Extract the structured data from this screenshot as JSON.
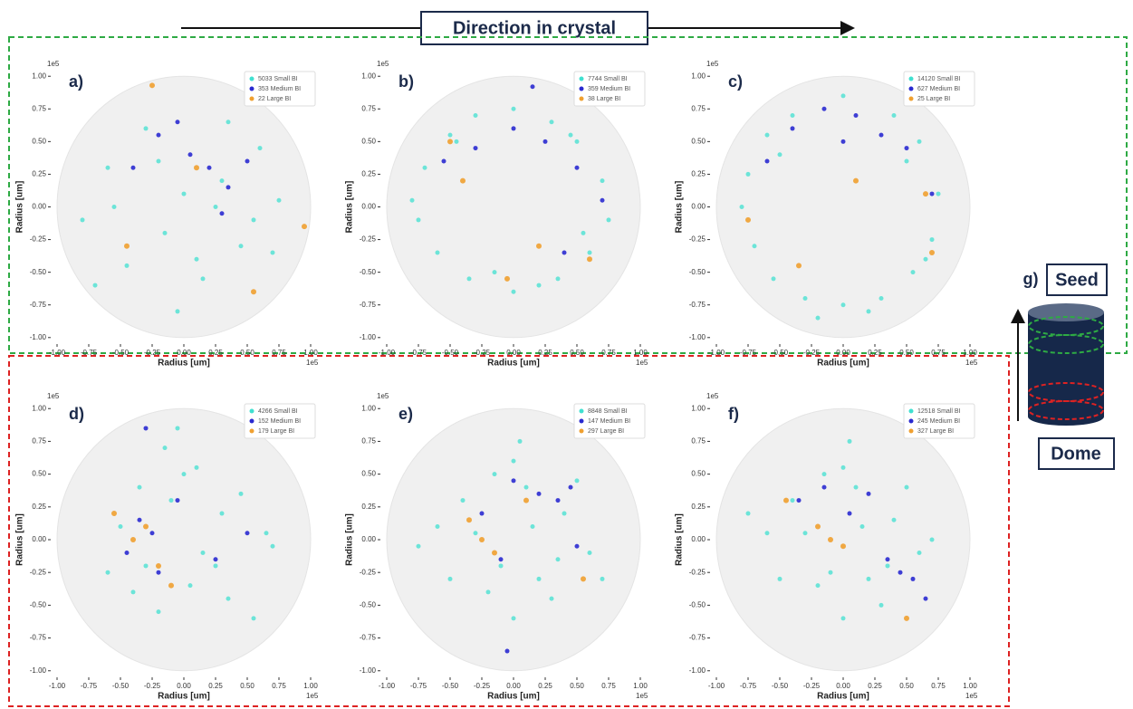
{
  "header": {
    "title": "Direction in crystal"
  },
  "diagram": {
    "label": "g)",
    "top": "Seed",
    "bottom": "Dome"
  },
  "chart_data": [
    {
      "type": "scatter",
      "label": "a)",
      "offset_text": "1e5",
      "xlabel": "Radius [um]",
      "ylabel": "Radius [um]",
      "legend": "upper right",
      "xlim": [
        -1.05,
        1.05
      ],
      "ylim": [
        -1.05,
        1.05
      ],
      "xticks": [
        {
          "value": -1,
          "label": "-1.00"
        },
        {
          "value": -0.75,
          "label": "-0.75"
        },
        {
          "value": -0.5,
          "label": "-0.50"
        },
        {
          "value": -0.25,
          "label": "-0.25"
        },
        {
          "value": 0,
          "label": "0.00"
        },
        {
          "value": 0.25,
          "label": "0.25"
        },
        {
          "value": 0.5,
          "label": "0.50"
        },
        {
          "value": 0.75,
          "label": "0.75"
        },
        {
          "value": 1,
          "label": "1.00"
        }
      ],
      "yticks": [
        {
          "value": -1,
          "label": "-1.00"
        },
        {
          "value": -0.75,
          "label": "-0.75"
        },
        {
          "value": -0.5,
          "label": "-0.50"
        },
        {
          "value": -0.25,
          "label": "-0.25"
        },
        {
          "value": 0,
          "label": "0.00"
        },
        {
          "value": 0.25,
          "label": "0.25"
        },
        {
          "value": 0.5,
          "label": "0.50"
        },
        {
          "value": 0.75,
          "label": "0.75"
        },
        {
          "value": 1,
          "label": "1.00"
        }
      ],
      "series": [
        {
          "name": "5033 Small BI",
          "color": "#40e0d0",
          "x": [
            -0.8,
            -0.6,
            -0.45,
            -0.3,
            -0.15,
            0,
            0.15,
            0.3,
            0.45,
            0.6,
            0.75,
            -0.55,
            -0.2,
            0.1,
            0.35,
            0.55,
            -0.7,
            -0.05,
            0.25,
            0.7
          ],
          "values": [
            -0.1,
            0.3,
            -0.45,
            0.6,
            -0.2,
            0.1,
            -0.55,
            0.2,
            -0.3,
            0.45,
            0.05,
            0,
            0.35,
            -0.4,
            0.65,
            -0.1,
            -0.6,
            -0.8,
            0,
            -0.35
          ]
        },
        {
          "name": "353 Medium BI",
          "color": "#2a2ad0",
          "x": [
            -0.4,
            -0.2,
            0.05,
            0.2,
            0.35,
            0.5,
            -0.05,
            0.3
          ],
          "values": [
            0.3,
            0.55,
            0.4,
            0.3,
            0.15,
            0.35,
            0.65,
            -0.05
          ]
        },
        {
          "name": "22 Large BI",
          "color": "#f0a030",
          "x": [
            -0.25,
            0.1,
            0.55,
            -0.45,
            0.95
          ],
          "values": [
            0.93,
            0.3,
            -0.65,
            -0.3,
            -0.15
          ]
        }
      ]
    },
    {
      "type": "scatter",
      "label": "b)",
      "offset_text": "1e5",
      "xlabel": "Radius [um]",
      "ylabel": "Radius [um]",
      "legend": "upper right",
      "xlim": [
        -1.05,
        1.05
      ],
      "ylim": [
        -1.05,
        1.05
      ],
      "xticks": [
        {
          "value": -1,
          "label": "-1.00"
        },
        {
          "value": -0.75,
          "label": "-0.75"
        },
        {
          "value": -0.5,
          "label": "-0.50"
        },
        {
          "value": -0.25,
          "label": "-0.25"
        },
        {
          "value": 0,
          "label": "0.00"
        },
        {
          "value": 0.25,
          "label": "0.25"
        },
        {
          "value": 0.5,
          "label": "0.50"
        },
        {
          "value": 0.75,
          "label": "0.75"
        },
        {
          "value": 1,
          "label": "1.00"
        }
      ],
      "yticks": [
        {
          "value": -1,
          "label": "-1.00"
        },
        {
          "value": -0.75,
          "label": "-0.75"
        },
        {
          "value": -0.5,
          "label": "-0.50"
        },
        {
          "value": -0.25,
          "label": "-0.25"
        },
        {
          "value": 0,
          "label": "0.00"
        },
        {
          "value": 0.25,
          "label": "0.25"
        },
        {
          "value": 0.5,
          "label": "0.50"
        },
        {
          "value": 0.75,
          "label": "0.75"
        },
        {
          "value": 1,
          "label": "1.00"
        }
      ],
      "series": [
        {
          "name": "7744 Small BI",
          "color": "#40e0d0",
          "x": [
            -0.7,
            -0.5,
            -0.3,
            0,
            0.3,
            0.5,
            0.7,
            0.75,
            0.6,
            0.35,
            0,
            -0.35,
            -0.6,
            -0.75,
            -0.8,
            0.45,
            -0.15,
            0.2,
            -0.45,
            0.55
          ],
          "values": [
            0.3,
            0.55,
            0.7,
            0.75,
            0.65,
            0.5,
            0.2,
            -0.1,
            -0.35,
            -0.55,
            -0.65,
            -0.55,
            -0.35,
            -0.1,
            0.05,
            0.55,
            -0.5,
            -0.6,
            0.5,
            -0.2
          ]
        },
        {
          "name": "359 Medium BI",
          "color": "#2a2ad0",
          "x": [
            -0.3,
            0,
            0.25,
            0.5,
            0.7,
            -0.55,
            0.4,
            0.15
          ],
          "values": [
            0.45,
            0.6,
            0.5,
            0.3,
            0.05,
            0.35,
            -0.35,
            0.92
          ]
        },
        {
          "name": "38 Large BI",
          "color": "#f0a030",
          "x": [
            -0.4,
            0.2,
            -0.05,
            -0.5,
            0.6
          ],
          "values": [
            0.2,
            -0.3,
            -0.55,
            0.5,
            -0.4
          ]
        }
      ]
    },
    {
      "type": "scatter",
      "label": "c)",
      "offset_text": "1e5",
      "xlabel": "Radius [um]",
      "ylabel": "Radius [um]",
      "legend": "upper right",
      "xlim": [
        -1.05,
        1.05
      ],
      "ylim": [
        -1.05,
        1.05
      ],
      "xticks": [
        {
          "value": -1,
          "label": "-1.00"
        },
        {
          "value": -0.75,
          "label": "-0.75"
        },
        {
          "value": -0.5,
          "label": "-0.50"
        },
        {
          "value": -0.25,
          "label": "-0.25"
        },
        {
          "value": 0,
          "label": "0.00"
        },
        {
          "value": 0.25,
          "label": "0.25"
        },
        {
          "value": 0.5,
          "label": "0.50"
        },
        {
          "value": 0.75,
          "label": "0.75"
        },
        {
          "value": 1,
          "label": "1.00"
        }
      ],
      "yticks": [
        {
          "value": -1,
          "label": "-1.00"
        },
        {
          "value": -0.75,
          "label": "-0.75"
        },
        {
          "value": -0.5,
          "label": "-0.50"
        },
        {
          "value": -0.25,
          "label": "-0.25"
        },
        {
          "value": 0,
          "label": "0.00"
        },
        {
          "value": 0.25,
          "label": "0.25"
        },
        {
          "value": 0.5,
          "label": "0.50"
        },
        {
          "value": 0.75,
          "label": "0.75"
        },
        {
          "value": 1,
          "label": "1.00"
        }
      ],
      "series": [
        {
          "name": "14120 Small BI",
          "color": "#40e0d0",
          "x": [
            -0.75,
            -0.6,
            -0.4,
            0,
            0.4,
            0.6,
            0.75,
            0.7,
            0.55,
            0.3,
            0,
            -0.3,
            -0.55,
            -0.7,
            -0.8,
            0.5,
            -0.2,
            0.2,
            -0.5,
            0.65
          ],
          "values": [
            0.25,
            0.55,
            0.7,
            0.85,
            0.7,
            0.5,
            0.1,
            -0.25,
            -0.5,
            -0.7,
            -0.75,
            -0.7,
            -0.55,
            -0.3,
            0,
            0.35,
            -0.85,
            -0.8,
            0.4,
            -0.4
          ]
        },
        {
          "name": "627 Medium BI",
          "color": "#2a2ad0",
          "x": [
            -0.4,
            -0.15,
            0.1,
            0.3,
            0.5,
            -0.6,
            0.7,
            0
          ],
          "values": [
            0.6,
            0.75,
            0.7,
            0.55,
            0.45,
            0.35,
            0.1,
            0.5
          ]
        },
        {
          "name": "25 Large BI",
          "color": "#f0a030",
          "x": [
            -0.75,
            0.65,
            -0.35,
            0.7,
            0.1
          ],
          "values": [
            -0.1,
            0.1,
            -0.45,
            -0.35,
            0.2
          ]
        }
      ]
    },
    {
      "type": "scatter",
      "label": "d)",
      "offset_text": "1e5",
      "xlabel": "Radius [um]",
      "ylabel": "Radius [um]",
      "legend": "upper right",
      "xlim": [
        -1.05,
        1.05
      ],
      "ylim": [
        -1.05,
        1.05
      ],
      "xticks": [
        {
          "value": -1,
          "label": "-1.00"
        },
        {
          "value": -0.75,
          "label": "-0.75"
        },
        {
          "value": -0.5,
          "label": "-0.50"
        },
        {
          "value": -0.25,
          "label": "-0.25"
        },
        {
          "value": 0,
          "label": "0.00"
        },
        {
          "value": 0.25,
          "label": "0.25"
        },
        {
          "value": 0.5,
          "label": "0.50"
        },
        {
          "value": 0.75,
          "label": "0.75"
        },
        {
          "value": 1,
          "label": "1.00"
        }
      ],
      "yticks": [
        {
          "value": -1,
          "label": "-1.00"
        },
        {
          "value": -0.75,
          "label": "-0.75"
        },
        {
          "value": -0.5,
          "label": "-0.50"
        },
        {
          "value": -0.25,
          "label": "-0.25"
        },
        {
          "value": 0,
          "label": "0.00"
        },
        {
          "value": 0.25,
          "label": "0.25"
        },
        {
          "value": 0.5,
          "label": "0.50"
        },
        {
          "value": 0.75,
          "label": "0.75"
        },
        {
          "value": 1,
          "label": "1.00"
        }
      ],
      "series": [
        {
          "name": "4266 Small BI",
          "color": "#40e0d0",
          "x": [
            -0.5,
            -0.3,
            -0.1,
            0,
            0.15,
            0.3,
            -0.4,
            -0.2,
            0.05,
            0.25,
            0.45,
            0.65,
            -0.6,
            -0.15,
            0.1,
            -0.35,
            0.35,
            0.55,
            -0.05,
            0.7
          ],
          "values": [
            0.1,
            -0.2,
            0.3,
            0.5,
            -0.1,
            0.2,
            -0.4,
            -0.55,
            -0.35,
            -0.2,
            0.35,
            0.05,
            -0.25,
            0.7,
            0.55,
            0.4,
            -0.45,
            -0.6,
            0.85,
            -0.05
          ]
        },
        {
          "name": "152 Medium BI",
          "color": "#2a2ad0",
          "x": [
            -0.35,
            -0.25,
            -0.45,
            -0.2,
            -0.05,
            0.25,
            -0.3,
            0.5
          ],
          "values": [
            0.15,
            0.05,
            -0.1,
            -0.25,
            0.3,
            -0.15,
            0.85,
            0.05
          ]
        },
        {
          "name": "179 Large BI",
          "color": "#f0a030",
          "x": [
            -0.3,
            -0.4,
            -0.2,
            -0.55,
            -0.1
          ],
          "values": [
            0.1,
            0,
            -0.2,
            0.2,
            -0.35
          ]
        }
      ]
    },
    {
      "type": "scatter",
      "label": "e)",
      "offset_text": "1e5",
      "xlabel": "Radius [um]",
      "ylabel": "Radius [um]",
      "legend": "upper right",
      "xlim": [
        -1.05,
        1.05
      ],
      "ylim": [
        -1.05,
        1.05
      ],
      "xticks": [
        {
          "value": -1,
          "label": "-1.00"
        },
        {
          "value": -0.75,
          "label": "-0.75"
        },
        {
          "value": -0.5,
          "label": "-0.50"
        },
        {
          "value": -0.25,
          "label": "-0.25"
        },
        {
          "value": 0,
          "label": "0.00"
        },
        {
          "value": 0.25,
          "label": "0.25"
        },
        {
          "value": 0.5,
          "label": "0.50"
        },
        {
          "value": 0.75,
          "label": "0.75"
        },
        {
          "value": 1,
          "label": "1.00"
        }
      ],
      "yticks": [
        {
          "value": -1,
          "label": "-1.00"
        },
        {
          "value": -0.75,
          "label": "-0.75"
        },
        {
          "value": -0.5,
          "label": "-0.50"
        },
        {
          "value": -0.25,
          "label": "-0.25"
        },
        {
          "value": 0,
          "label": "0.00"
        },
        {
          "value": 0.25,
          "label": "0.25"
        },
        {
          "value": 0.5,
          "label": "0.50"
        },
        {
          "value": 0.75,
          "label": "0.75"
        },
        {
          "value": 1,
          "label": "1.00"
        }
      ],
      "series": [
        {
          "name": "8848 Small BI",
          "color": "#40e0d0",
          "x": [
            -0.6,
            -0.4,
            -0.2,
            0,
            0.2,
            0.4,
            0.6,
            -0.3,
            -0.1,
            0.1,
            0.3,
            0.5,
            -0.5,
            0,
            0.15,
            -0.15,
            0.35,
            0.7,
            -0.75,
            0.05
          ],
          "values": [
            0.1,
            0.3,
            -0.4,
            0.6,
            -0.3,
            0.2,
            -0.1,
            0.05,
            -0.2,
            0.4,
            -0.45,
            0.45,
            -0.3,
            -0.6,
            0.1,
            0.5,
            -0.15,
            -0.3,
            -0.05,
            0.75
          ]
        },
        {
          "name": "147 Medium BI",
          "color": "#2a2ad0",
          "x": [
            -0.25,
            0,
            0.2,
            0.35,
            -0.1,
            0.45,
            0.5,
            -0.05
          ],
          "values": [
            0.2,
            0.45,
            0.35,
            0.3,
            -0.15,
            0.4,
            -0.05,
            -0.85
          ]
        },
        {
          "name": "297 Large BI",
          "color": "#f0a030",
          "x": [
            -0.25,
            -0.15,
            -0.35,
            0.1,
            0.55
          ],
          "values": [
            0,
            -0.1,
            0.15,
            0.3,
            -0.3
          ]
        }
      ]
    },
    {
      "type": "scatter",
      "label": "f)",
      "offset_text": "1e5",
      "xlabel": "Radius [um]",
      "ylabel": "Radius [um]",
      "legend": "upper right",
      "xlim": [
        -1.05,
        1.05
      ],
      "ylim": [
        -1.05,
        1.05
      ],
      "xticks": [
        {
          "value": -1,
          "label": "-1.00"
        },
        {
          "value": -0.75,
          "label": "-0.75"
        },
        {
          "value": -0.5,
          "label": "-0.50"
        },
        {
          "value": -0.25,
          "label": "-0.25"
        },
        {
          "value": 0,
          "label": "0.00"
        },
        {
          "value": 0.25,
          "label": "0.25"
        },
        {
          "value": 0.5,
          "label": "0.50"
        },
        {
          "value": 0.75,
          "label": "0.75"
        },
        {
          "value": 1,
          "label": "1.00"
        }
      ],
      "yticks": [
        {
          "value": -1,
          "label": "-1.00"
        },
        {
          "value": -0.75,
          "label": "-0.75"
        },
        {
          "value": -0.5,
          "label": "-0.50"
        },
        {
          "value": -0.25,
          "label": "-0.25"
        },
        {
          "value": 0,
          "label": "0.00"
        },
        {
          "value": 0.25,
          "label": "0.25"
        },
        {
          "value": 0.5,
          "label": "0.50"
        },
        {
          "value": 0.75,
          "label": "0.75"
        },
        {
          "value": 1,
          "label": "1.00"
        }
      ],
      "series": [
        {
          "name": "12518 Small BI",
          "color": "#40e0d0",
          "x": [
            -0.6,
            -0.4,
            -0.2,
            0,
            0.2,
            0.4,
            0.6,
            -0.3,
            -0.1,
            0.1,
            0.3,
            0.5,
            -0.5,
            0,
            0.15,
            -0.15,
            0.35,
            0.7,
            -0.75,
            0.05
          ],
          "values": [
            0.05,
            0.3,
            -0.35,
            0.55,
            -0.3,
            0.15,
            -0.1,
            0.05,
            -0.25,
            0.4,
            -0.5,
            0.4,
            -0.3,
            -0.6,
            0.1,
            0.5,
            -0.2,
            0,
            0.2,
            0.75
          ]
        },
        {
          "name": "245 Medium BI",
          "color": "#2a2ad0",
          "x": [
            -0.35,
            -0.15,
            0.35,
            0.45,
            0.55,
            0.65,
            0.2,
            0.05
          ],
          "values": [
            0.3,
            0.4,
            -0.15,
            -0.25,
            -0.3,
            -0.45,
            0.35,
            0.2
          ]
        },
        {
          "name": "327 Large BI",
          "color": "#f0a030",
          "x": [
            -0.1,
            -0.2,
            0,
            -0.45,
            0.5
          ],
          "values": [
            0,
            0.1,
            -0.05,
            0.3,
            -0.6
          ]
        }
      ]
    }
  ]
}
